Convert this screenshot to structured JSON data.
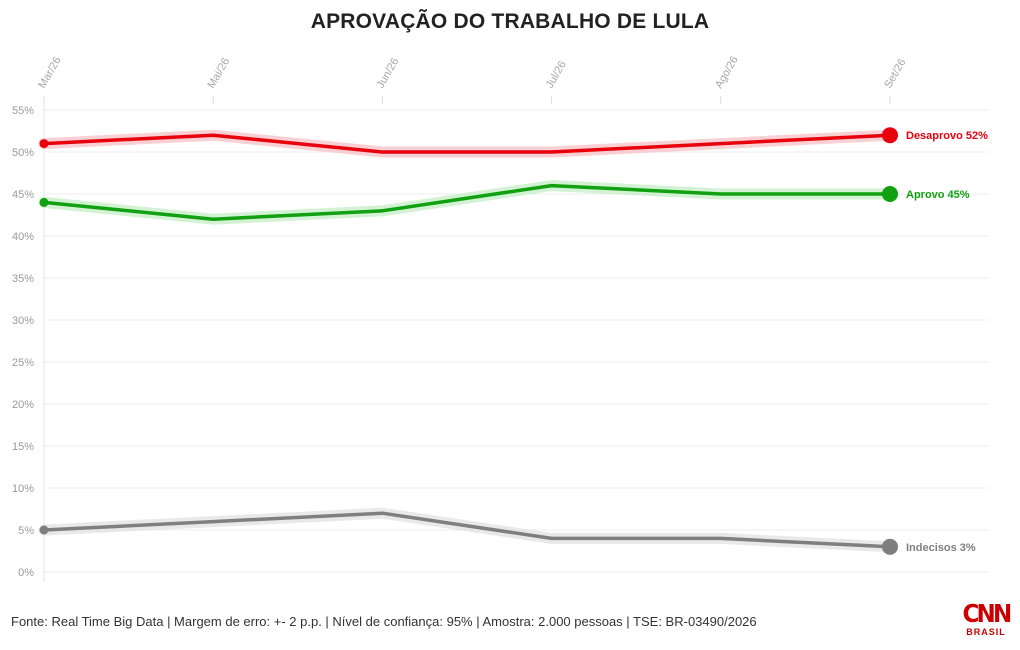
{
  "chart_data": {
    "type": "line",
    "title": "APROVAÇÃO DO TRABALHO DE LULA",
    "categories": [
      "Mar/26",
      "Mai/26",
      "Jun/26",
      "Jul/26",
      "Ago/26",
      "Set/26"
    ],
    "ylim": [
      0,
      55
    ],
    "yticks": [
      0,
      5,
      10,
      15,
      20,
      25,
      30,
      35,
      40,
      45,
      50,
      55
    ],
    "ytick_suffix": "%",
    "grid": true,
    "series": [
      {
        "name": "Desaprovo",
        "end_label": "Desaprovo 52%",
        "color": "#e8000d",
        "glow": "#f7c6c9",
        "values": [
          51,
          52,
          50,
          50,
          51,
          52
        ]
      },
      {
        "name": "Aprovo",
        "end_label": "Aprovo 45%",
        "color": "#10a010",
        "glow": "#c8efc8",
        "values": [
          44,
          42,
          43,
          46,
          45,
          45
        ]
      },
      {
        "name": "Indecisos",
        "end_label": "Indecisos 3%",
        "color": "#7f7f7f",
        "glow": "#e3e3e3",
        "values": [
          5,
          6,
          7,
          4,
          4,
          3
        ]
      }
    ]
  },
  "footer": {
    "source": "Fonte: Real Time Big Data | Margem de erro: +- 2 p.p. | Nível de confiança: 95% | Amostra: 2.000 pessoas | TSE: BR-03490/2026"
  },
  "logo": {
    "brand": "CNN",
    "sub": "BRASIL"
  }
}
